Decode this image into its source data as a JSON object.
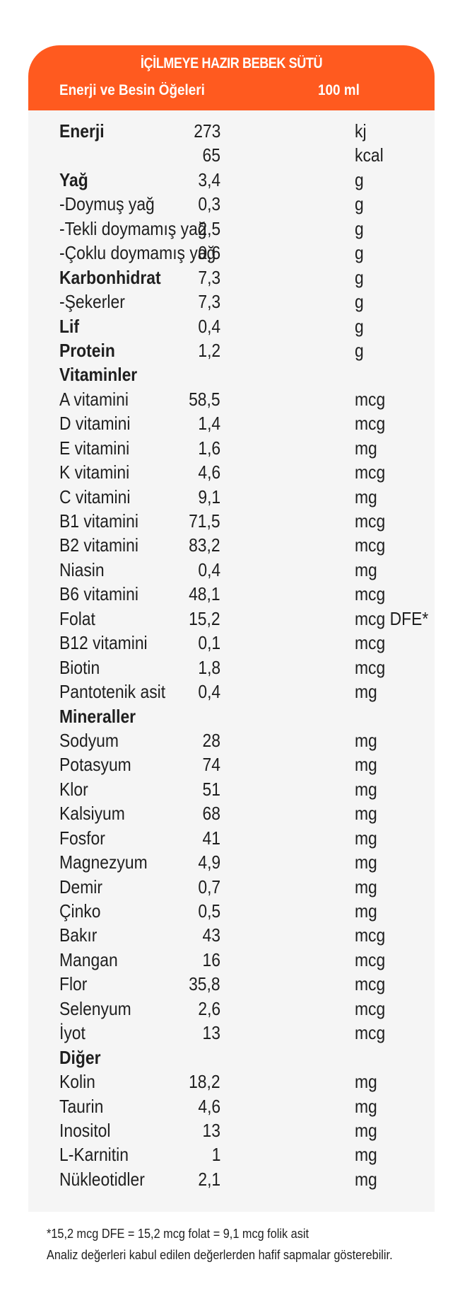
{
  "header": {
    "title": "İÇİLMEYE HAZIR BEBEK SÜTÜ",
    "col_left": "Enerji ve Besin Öğeleri",
    "col_right": "100 ml"
  },
  "rows": [
    {
      "name": "Enerji",
      "value": "273",
      "unit": "kj",
      "bold": true
    },
    {
      "name": "",
      "value": "65",
      "unit": "kcal",
      "bold": false
    },
    {
      "name": "Yağ",
      "value": "3,4",
      "unit": "g",
      "bold": true
    },
    {
      "name": "-Doymuş yağ",
      "value": "0,3",
      "unit": "g",
      "bold": false
    },
    {
      "name": "-Tekli doymamış yağ",
      "value": "2,5",
      "unit": "g",
      "bold": false
    },
    {
      "name": "-Çoklu doymamış yağ",
      "value": "0,6",
      "unit": "g",
      "bold": false
    },
    {
      "name": "Karbonhidrat",
      "value": "7,3",
      "unit": "g",
      "bold": true
    },
    {
      "name": "-Şekerler",
      "value": "7,3",
      "unit": "g",
      "bold": false
    },
    {
      "name": "Lif",
      "value": "0,4",
      "unit": "g",
      "bold": true
    },
    {
      "name": "Protein",
      "value": "1,2",
      "unit": "g",
      "bold": true
    },
    {
      "name": "Vitaminler",
      "value": "",
      "unit": "",
      "bold": true
    },
    {
      "name": "A vitamini",
      "value": "58,5",
      "unit": "mcg",
      "bold": false
    },
    {
      "name": "D vitamini",
      "value": "1,4",
      "unit": "mcg",
      "bold": false
    },
    {
      "name": "E vitamini",
      "value": "1,6",
      "unit": "mg",
      "bold": false
    },
    {
      "name": "K vitamini",
      "value": "4,6",
      "unit": "mcg",
      "bold": false
    },
    {
      "name": "C vitamini",
      "value": "9,1",
      "unit": "mg",
      "bold": false
    },
    {
      "name": "B1 vitamini",
      "value": "71,5",
      "unit": "mcg",
      "bold": false
    },
    {
      "name": "B2 vitamini",
      "value": "83,2",
      "unit": "mcg",
      "bold": false
    },
    {
      "name": "Niasin",
      "value": "0,4",
      "unit": "mg",
      "bold": false
    },
    {
      "name": "B6 vitamini",
      "value": "48,1",
      "unit": "mcg",
      "bold": false
    },
    {
      "name": "Folat",
      "value": "15,2",
      "unit": "mcg DFE*",
      "bold": false
    },
    {
      "name": "B12 vitamini",
      "value": "0,1",
      "unit": "mcg",
      "bold": false
    },
    {
      "name": "Biotin",
      "value": "1,8",
      "unit": "mcg",
      "bold": false
    },
    {
      "name": "Pantotenik asit",
      "value": "0,4",
      "unit": "mg",
      "bold": false
    },
    {
      "name": "Mineraller",
      "value": "",
      "unit": "",
      "bold": true
    },
    {
      "name": "Sodyum",
      "value": "28",
      "unit": "mg",
      "bold": false
    },
    {
      "name": "Potasyum",
      "value": "74",
      "unit": "mg",
      "bold": false
    },
    {
      "name": "Klor",
      "value": "51",
      "unit": "mg",
      "bold": false
    },
    {
      "name": "Kalsiyum",
      "value": "68",
      "unit": "mg",
      "bold": false
    },
    {
      "name": "Fosfor",
      "value": "41",
      "unit": "mg",
      "bold": false
    },
    {
      "name": "Magnezyum",
      "value": "4,9",
      "unit": "mg",
      "bold": false
    },
    {
      "name": "Demir",
      "value": "0,7",
      "unit": "mg",
      "bold": false
    },
    {
      "name": "Çinko",
      "value": "0,5",
      "unit": "mg",
      "bold": false
    },
    {
      "name": "Bakır",
      "value": "43",
      "unit": "mcg",
      "bold": false
    },
    {
      "name": "Mangan",
      "value": "16",
      "unit": "mcg",
      "bold": false
    },
    {
      "name": "Flor",
      "value": "35,8",
      "unit": "mcg",
      "bold": false
    },
    {
      "name": "Selenyum",
      "value": "2,6",
      "unit": "mcg",
      "bold": false
    },
    {
      "name": "İyot",
      "value": "13",
      "unit": "mcg",
      "bold": false
    },
    {
      "name": "Diğer",
      "value": "",
      "unit": "",
      "bold": true
    },
    {
      "name": "Kolin",
      "value": "18,2",
      "unit": "mg",
      "bold": false
    },
    {
      "name": "Taurin",
      "value": "4,6",
      "unit": "mg",
      "bold": false
    },
    {
      "name": "Inositol",
      "value": "13",
      "unit": "mg",
      "bold": false
    },
    {
      "name": "L-Karnitin",
      "value": "1",
      "unit": "mg",
      "bold": false
    },
    {
      "name": "Nükleotidler",
      "value": "2,1",
      "unit": "mg",
      "bold": false
    }
  ],
  "footnote": {
    "line1": "*15,2 mcg DFE = 15,2 mcg folat = 9,1 mcg folik asit",
    "line2": "Analiz değerleri kabul edilen değerlerden hafif sapmalar gösterebilir."
  },
  "colors": {
    "header_bg": "#ff5a1f",
    "panel_bg": "#f5f5f5",
    "text": "#1f1f1f"
  }
}
